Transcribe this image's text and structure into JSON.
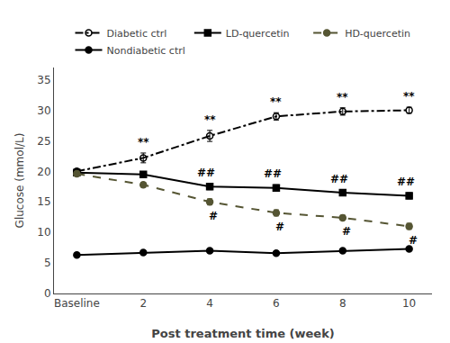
{
  "chart_data": {
    "type": "line",
    "xlabel": "Post treatment time (week)",
    "ylabel": "Glucose (mmol/L)",
    "categories": [
      "Baseline",
      "2",
      "4",
      "6",
      "8",
      "10"
    ],
    "series": [
      {
        "name": "Diabetic ctrl",
        "color": "#000000",
        "line_style": "dashdot",
        "marker": "circle-open",
        "values": [
          20.0,
          22.2,
          25.8,
          29.0,
          29.8,
          30.0
        ],
        "yerr": [
          0.4,
          0.8,
          0.9,
          0.6,
          0.6,
          0.5
        ],
        "annotations": [
          null,
          "**",
          "**",
          "**",
          "**",
          "**"
        ]
      },
      {
        "name": "LD-quercetin",
        "color": "#000000",
        "line_style": "solid",
        "marker": "square",
        "values": [
          19.8,
          19.5,
          17.5,
          17.3,
          16.5,
          16.0
        ],
        "yerr": [
          0.4,
          0.4,
          0.5,
          0.5,
          0.5,
          0.5
        ],
        "annotations": [
          null,
          null,
          "##",
          "##",
          "##",
          "##"
        ]
      },
      {
        "name": "HD-quercetin",
        "color": "#555533",
        "line_style": "dash",
        "marker": "circle",
        "values": [
          19.6,
          17.8,
          15.0,
          13.2,
          12.4,
          11.0
        ],
        "yerr": [
          0.4,
          0.4,
          0.5,
          0.5,
          0.4,
          0.5
        ],
        "annotations": [
          null,
          null,
          "#",
          "#",
          "#",
          "#"
        ]
      },
      {
        "name": "Nondiabetic ctrl",
        "color": "#000000",
        "line_style": "solid",
        "marker": "circle",
        "values": [
          6.3,
          6.7,
          7.0,
          6.6,
          7.0,
          7.3
        ],
        "yerr": [
          0.3,
          0.3,
          0.3,
          0.3,
          0.3,
          0.3
        ]
      }
    ],
    "ylim": [
      0,
      37
    ],
    "yticks": [
      0,
      5,
      10,
      15,
      20,
      25,
      30,
      35
    ],
    "grid": false,
    "legend": "top"
  }
}
